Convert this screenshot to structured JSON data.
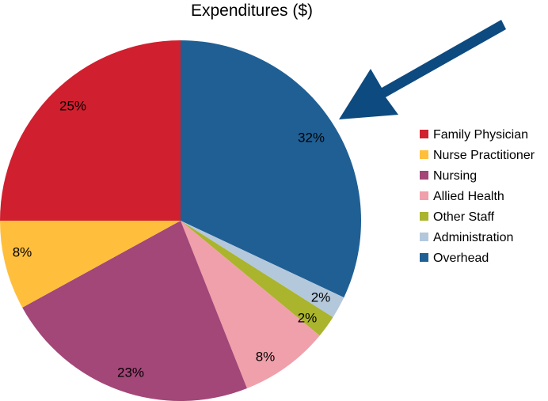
{
  "chart_data": {
    "type": "pie",
    "title": "Expenditures ($)",
    "start_angle_deg": 0,
    "direction": "clockwise",
    "legend_position": "right",
    "slices": [
      {
        "name": "Overhead",
        "value": 32,
        "label": "32%",
        "color": "#1f5f94"
      },
      {
        "name": "Administration",
        "value": 2,
        "label": "2%",
        "color": "#b4c8dc"
      },
      {
        "name": "Other Staff",
        "value": 2,
        "label": "2%",
        "color": "#aab42c"
      },
      {
        "name": "Allied Health",
        "value": 8,
        "label": "8%",
        "color": "#f0a0aa"
      },
      {
        "name": "Nursing",
        "value": 23,
        "label": "23%",
        "color": "#a34678"
      },
      {
        "name": "Nurse Practitioner",
        "value": 8,
        "label": "8%",
        "color": "#ffbf3c"
      },
      {
        "name": "Family Physician",
        "value": 25,
        "label": "25%",
        "color": "#d01f2e"
      }
    ],
    "legend": [
      {
        "name": "Family Physician",
        "color": "#d01f2e"
      },
      {
        "name": "Nurse Practitioner",
        "color": "#ffbf3c"
      },
      {
        "name": "Nursing",
        "color": "#a34678"
      },
      {
        "name": "Allied Health",
        "color": "#f0a0aa"
      },
      {
        "name": "Other Staff",
        "color": "#aab42c"
      },
      {
        "name": "Administration",
        "color": "#b4c8dc"
      },
      {
        "name": "Overhead",
        "color": "#1f5f94"
      }
    ],
    "annotation": {
      "type": "arrow",
      "points_to": "Overhead",
      "color": "#0d4a80"
    }
  }
}
